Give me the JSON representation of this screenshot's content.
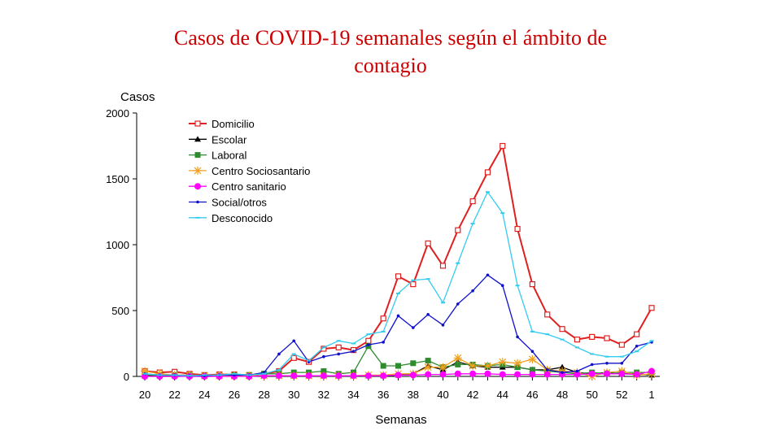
{
  "chart_data": {
    "type": "line",
    "title_lines": [
      "Casos de COVID-19 semanales según el ámbito de",
      "contagio"
    ],
    "ylabel": "Casos",
    "xlabel": "Semanas",
    "ylim": [
      0,
      2000
    ],
    "yticks": [
      "0",
      "500",
      "1000",
      "1500",
      "2000"
    ],
    "x": [
      "20",
      "21",
      "22",
      "23",
      "24",
      "25",
      "26",
      "27",
      "28",
      "29",
      "30",
      "31",
      "32",
      "33",
      "34",
      "35",
      "36",
      "37",
      "38",
      "39",
      "40",
      "41",
      "42",
      "43",
      "44",
      "45",
      "46",
      "47",
      "48",
      "49",
      "50",
      "51",
      "52",
      "53",
      "1"
    ],
    "xtick_labels": [
      "20",
      "22",
      "24",
      "26",
      "28",
      "30",
      "32",
      "34",
      "36",
      "38",
      "40",
      "42",
      "44",
      "46",
      "48",
      "50",
      "52",
      "1"
    ],
    "grid": false,
    "legend_position": "top-left",
    "series": [
      {
        "name": "Domicilio",
        "color": "#e02020",
        "marker": "open-square",
        "values": [
          40,
          30,
          35,
          20,
          10,
          15,
          15,
          10,
          20,
          40,
          140,
          110,
          210,
          220,
          200,
          270,
          440,
          760,
          700,
          1010,
          840,
          1110,
          1330,
          1550,
          1750,
          1120,
          700,
          470,
          360,
          280,
          300,
          290,
          240,
          320,
          520
        ]
      },
      {
        "name": "Escolar",
        "color": "#000000",
        "marker": "triangle",
        "values": [
          5,
          5,
          5,
          5,
          5,
          5,
          5,
          5,
          5,
          5,
          5,
          5,
          5,
          5,
          5,
          5,
          5,
          10,
          20,
          80,
          50,
          110,
          80,
          70,
          70,
          70,
          50,
          50,
          70,
          30,
          20,
          30,
          20,
          20,
          10
        ]
      },
      {
        "name": "Laboral",
        "color": "#2e8b2e",
        "marker": "square",
        "values": [
          10,
          10,
          10,
          10,
          5,
          5,
          10,
          10,
          20,
          20,
          30,
          30,
          40,
          20,
          30,
          230,
          80,
          80,
          100,
          120,
          70,
          90,
          90,
          80,
          90,
          70,
          50,
          40,
          30,
          20,
          30,
          20,
          30,
          30,
          30
        ]
      },
      {
        "name": "Centro Sociosantario",
        "color": "#f0a020",
        "marker": "star",
        "values": [
          40,
          20,
          10,
          10,
          5,
          5,
          5,
          5,
          5,
          5,
          5,
          5,
          5,
          5,
          5,
          10,
          10,
          20,
          20,
          70,
          70,
          140,
          80,
          80,
          110,
          100,
          130,
          50,
          40,
          30,
          0,
          30,
          40,
          10,
          20
        ]
      },
      {
        "name": "Centro sanitario",
        "color": "#ff00ff",
        "marker": "circle",
        "values": [
          0,
          0,
          0,
          0,
          0,
          0,
          0,
          0,
          5,
          5,
          5,
          5,
          5,
          5,
          5,
          5,
          5,
          10,
          10,
          15,
          15,
          20,
          20,
          20,
          15,
          15,
          15,
          15,
          15,
          15,
          20,
          20,
          20,
          15,
          40
        ]
      },
      {
        "name": "Social/otros",
        "color": "#1010cc",
        "marker": "dot",
        "values": [
          20,
          10,
          10,
          5,
          5,
          10,
          10,
          10,
          30,
          170,
          270,
          110,
          150,
          170,
          190,
          240,
          260,
          460,
          370,
          470,
          390,
          550,
          650,
          770,
          690,
          300,
          190,
          50,
          30,
          40,
          90,
          100,
          100,
          230,
          260
        ]
      },
      {
        "name": "Desconocido",
        "color": "#33ccee",
        "marker": "dash",
        "values": [
          20,
          10,
          10,
          5,
          10,
          10,
          20,
          10,
          20,
          50,
          170,
          120,
          220,
          270,
          250,
          320,
          340,
          630,
          730,
          740,
          560,
          860,
          1160,
          1400,
          1240,
          690,
          340,
          320,
          280,
          220,
          170,
          150,
          150,
          190,
          270
        ]
      }
    ]
  }
}
